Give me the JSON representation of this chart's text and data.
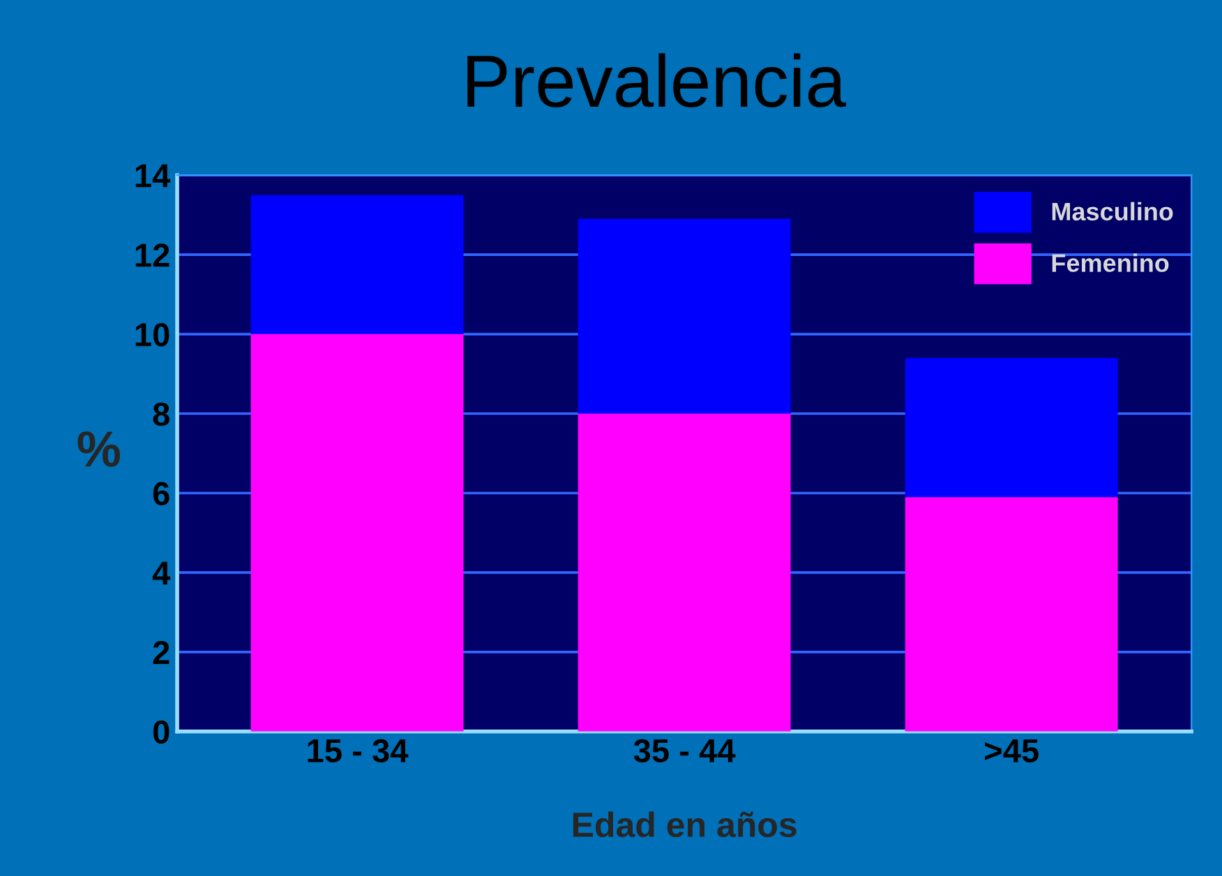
{
  "chart_data": {
    "type": "bar",
    "title": "Prevalencia",
    "xlabel": "Edad en años",
    "ylabel": "%",
    "categories": [
      "15 - 34",
      "35 - 44",
      ">45"
    ],
    "stacked": true,
    "series": [
      {
        "name": "Femenino",
        "color": "#ff00ff",
        "values": [
          10,
          8,
          5.9
        ]
      },
      {
        "name": "Masculino",
        "color": "#0000ff",
        "values": [
          3.5,
          4.9,
          3.5
        ]
      }
    ],
    "ylim": [
      0,
      14
    ],
    "yticks": [
      0,
      2,
      4,
      6,
      8,
      10,
      12,
      14
    ],
    "grid": "y",
    "legend": "top right"
  }
}
